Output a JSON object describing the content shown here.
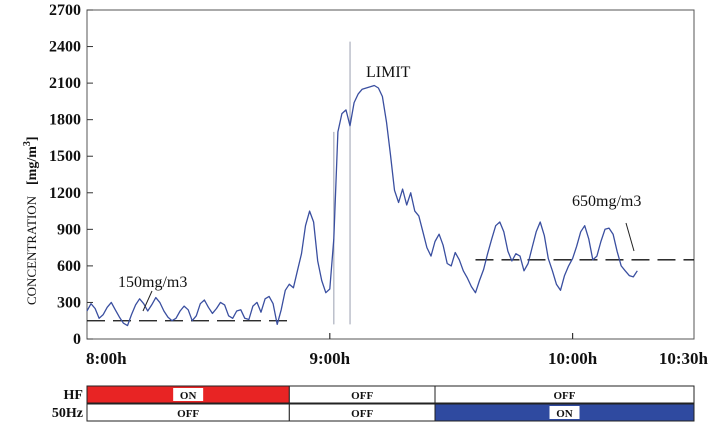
{
  "chart_data": {
    "type": "line",
    "ylabel": "CONCENTRATION",
    "ylabel_unit": "[mg/m",
    "ylabel_unit_sup": "3",
    "ylabel_unit_end": "]",
    "ylim": [
      0,
      2700
    ],
    "yticks": [
      0,
      300,
      600,
      900,
      1200,
      1500,
      1800,
      2100,
      2400,
      2700
    ],
    "xticks": [
      "8:00h",
      "9:00h",
      "10:00h",
      "10:30h"
    ],
    "x_range_minutes_after_8h": [
      0,
      150
    ],
    "grid": false,
    "line_color": "#3a4fa0",
    "series": [
      {
        "x_minutes_after_8h": [
          0,
          1,
          2,
          3,
          4,
          5,
          6,
          7,
          8,
          9,
          10,
          11,
          12,
          13,
          14,
          15,
          16,
          17,
          18,
          19,
          20,
          21,
          22,
          23,
          24,
          25,
          26,
          27,
          28,
          29,
          30,
          31,
          32,
          33,
          34,
          35,
          36,
          37,
          38,
          39,
          40,
          41,
          42,
          43,
          44,
          45,
          46,
          47,
          48,
          49,
          50,
          51,
          52,
          53,
          54,
          55,
          56,
          57,
          58,
          59,
          60,
          61,
          62,
          63,
          64,
          65,
          66,
          67,
          68,
          69,
          70,
          71,
          72,
          73,
          74,
          75,
          76,
          77,
          78,
          79,
          80,
          81,
          82,
          83,
          84,
          85,
          86,
          87,
          88,
          89,
          90,
          91,
          92,
          93,
          94,
          95,
          96,
          97,
          98,
          99,
          100,
          101,
          102,
          103,
          104,
          105,
          106,
          107,
          108,
          109,
          110,
          111,
          112,
          113,
          114,
          115,
          116,
          117,
          118,
          119,
          120,
          121,
          122,
          123,
          124,
          125,
          126,
          127,
          128,
          129,
          130,
          131,
          132,
          133,
          134,
          135,
          136,
          137,
          138,
          139,
          140,
          141,
          142,
          143,
          144,
          145,
          146,
          147,
          148,
          149,
          150
        ],
        "values": [
          230,
          290,
          250,
          170,
          200,
          260,
          300,
          240,
          180,
          130,
          110,
          200,
          280,
          330,
          290,
          230,
          280,
          340,
          300,
          230,
          180,
          150,
          170,
          230,
          270,
          240,
          150,
          190,
          290,
          320,
          260,
          210,
          250,
          300,
          280,
          190,
          170,
          230,
          240,
          170,
          160,
          270,
          300,
          220,
          330,
          350,
          290,
          120,
          240,
          400,
          450,
          420,
          560,
          700,
          930,
          1050,
          960,
          640,
          480,
          380,
          410,
          820,
          1700,
          1850,
          1880,
          1750,
          1940,
          2010,
          2050,
          2060,
          2070,
          2080,
          2060,
          1990,
          1780,
          1510,
          1220,
          1120,
          1230,
          1100,
          1200,
          1050,
          1010,
          880,
          750,
          680,
          800,
          860,
          770,
          620,
          600,
          710,
          650,
          560,
          500,
          430,
          380,
          480,
          570,
          700,
          820,
          930,
          960,
          880,
          720,
          640,
          700,
          680,
          560,
          620,
          750,
          880,
          960,
          850,
          660,
          560,
          450,
          400,
          520,
          600,
          660,
          760,
          880,
          930,
          820,
          650,
          680,
          800,
          900,
          910,
          860,
          720,
          600,
          560,
          520,
          510,
          560
        ]
      }
    ],
    "spike_x_minutes_after_8h": [
      61,
      65
    ],
    "reference_lines": [
      {
        "value": 150,
        "x_from": 0,
        "x_to": 50
      },
      {
        "value": 650,
        "x_from": 96,
        "x_to": 150
      }
    ]
  },
  "annotations": {
    "low_label": "150mg/m3",
    "limit_label": "LIMIT",
    "high_label": "650mg/m3"
  },
  "timeline": {
    "rows": [
      {
        "label": "HF",
        "segments": [
          {
            "start": 0,
            "end": 50,
            "text": "ON",
            "color": "#e82424",
            "active": true
          },
          {
            "start": 50,
            "end": 86,
            "text": "OFF",
            "color": "#ffffff",
            "active": false
          },
          {
            "start": 86,
            "end": 150,
            "text": "OFF",
            "color": "#ffffff",
            "active": false
          }
        ]
      },
      {
        "label": "50Hz",
        "segments": [
          {
            "start": 0,
            "end": 50,
            "text": "OFF",
            "color": "#ffffff",
            "active": false
          },
          {
            "start": 50,
            "end": 86,
            "text": "OFF",
            "color": "#ffffff",
            "active": false
          },
          {
            "start": 86,
            "end": 150,
            "text": "ON",
            "color": "#2f4aa0",
            "active": true
          }
        ]
      }
    ]
  }
}
